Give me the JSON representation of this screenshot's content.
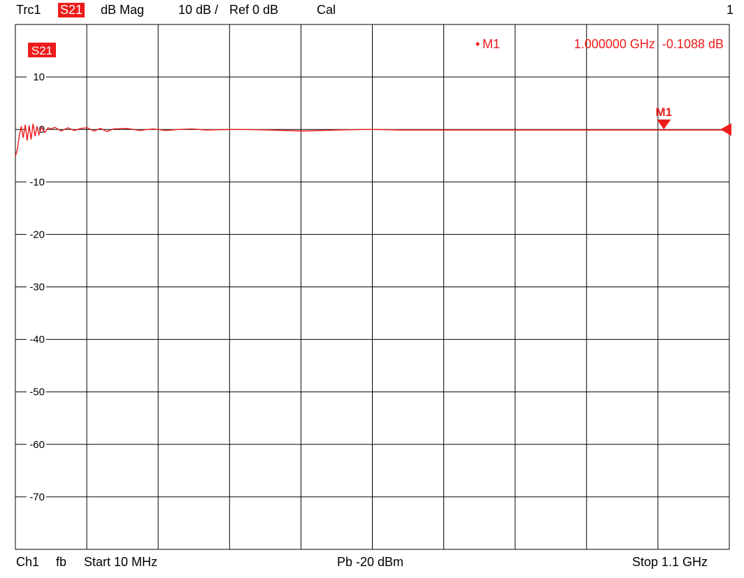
{
  "header": {
    "trace": "Trc1",
    "param": "S21",
    "format": "dB Mag",
    "scale": "10 dB /",
    "ref": "Ref 0 dB",
    "cal": "Cal",
    "channel_num": "1"
  },
  "footer": {
    "channel": "Ch1",
    "sweep": "fb",
    "start": "Start  10 MHz",
    "power": "Pb  -20 dBm",
    "stop": "Stop  1.1 GHz"
  },
  "colors": {
    "trace": "#ee1c1c",
    "grid": "#000000",
    "background": "#ffffff"
  },
  "chart_data": {
    "type": "line",
    "trace_label": "S21",
    "xlim": [
      0.01,
      1.1
    ],
    "ylim": [
      -80,
      20
    ],
    "ref_level": 0,
    "grid": true,
    "y_ticks": [
      10,
      0,
      -10,
      -20,
      -30,
      -40,
      -50,
      -60,
      -70
    ],
    "y_tick_labels": [
      "10",
      "0",
      "-10",
      "-20",
      "-30",
      "-40",
      "-50",
      "-60",
      "-70"
    ],
    "series": [
      {
        "x": [
          0.01,
          0.013,
          0.016,
          0.019,
          0.022,
          0.025,
          0.028,
          0.031,
          0.034,
          0.037,
          0.04,
          0.043,
          0.046,
          0.05,
          0.055,
          0.06,
          0.065,
          0.07,
          0.08,
          0.09,
          0.1,
          0.11,
          0.12,
          0.13,
          0.14,
          0.15,
          0.16,
          0.18,
          0.2,
          0.22,
          0.24,
          0.26,
          0.28,
          0.3,
          0.35,
          0.4,
          0.45,
          0.5,
          0.55,
          0.6,
          0.7,
          0.8,
          0.9,
          1.0,
          1.05,
          1.1
        ],
        "y": [
          -5.1,
          -3.8,
          -1.2,
          0.6,
          -1.6,
          0.9,
          -2.1,
          0.7,
          -1.9,
          1.1,
          -1.3,
          0.6,
          -1.0,
          0.4,
          -0.6,
          0.3,
          0.1,
          0.4,
          -0.3,
          0.3,
          -0.2,
          0.2,
          0.3,
          -0.3,
          0.2,
          -0.4,
          0.1,
          0.2,
          -0.2,
          0.1,
          -0.2,
          0.0,
          0.1,
          -0.1,
          0.0,
          -0.1,
          -0.3,
          -0.1,
          0.0,
          -0.1,
          -0.1,
          -0.1,
          -0.1,
          -0.1088,
          -0.1,
          -0.1
        ]
      }
    ],
    "markers": [
      {
        "name": "M1",
        "x": 1.0,
        "y": -0.1088,
        "readout": "1.000000 GHz  -0.1088 dB",
        "dot": "•"
      }
    ]
  }
}
